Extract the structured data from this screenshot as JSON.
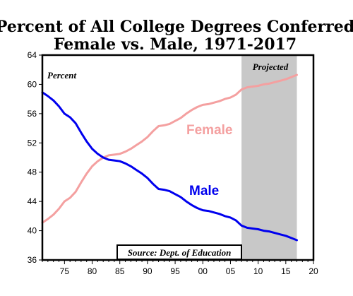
{
  "chart_data": {
    "type": "line",
    "title": "Percent of All College Degrees Conferred",
    "subtitle": "Female vs. Male, 1971-2017",
    "ylabel": "Percent",
    "source": "Source: Dept. of Education",
    "projected_label": "Projected",
    "projected_range": [
      2007,
      2017
    ],
    "xlim": [
      1971,
      2020
    ],
    "ylim": [
      36,
      64
    ],
    "x_tick_values": [
      1975,
      1980,
      1985,
      1990,
      1995,
      2000,
      2005,
      2010,
      2015,
      2020
    ],
    "x_tick_labels": [
      "75",
      "80",
      "85",
      "90",
      "95",
      "00",
      "05",
      "10",
      "15",
      "20"
    ],
    "y_ticks": [
      36,
      40,
      44,
      48,
      52,
      56,
      60,
      64
    ],
    "grid": false,
    "x": [
      1971,
      1972,
      1973,
      1974,
      1975,
      1976,
      1977,
      1978,
      1979,
      1980,
      1981,
      1982,
      1983,
      1984,
      1985,
      1986,
      1987,
      1988,
      1989,
      1990,
      1991,
      1992,
      1993,
      1994,
      1995,
      1996,
      1997,
      1998,
      1999,
      2000,
      2001,
      2002,
      2003,
      2004,
      2005,
      2006,
      2007,
      2008,
      2009,
      2010,
      2011,
      2012,
      2013,
      2014,
      2015,
      2016,
      2017
    ],
    "series": [
      {
        "name": "Female",
        "color": "#f4a0a0",
        "values": [
          41.1,
          41.6,
          42.2,
          43.0,
          44.0,
          44.5,
          45.3,
          46.6,
          47.8,
          48.8,
          49.5,
          50.0,
          50.3,
          50.4,
          50.5,
          50.8,
          51.2,
          51.7,
          52.2,
          52.8,
          53.6,
          54.3,
          54.4,
          54.6,
          55.0,
          55.4,
          56.0,
          56.5,
          56.9,
          57.2,
          57.3,
          57.5,
          57.7,
          58.0,
          58.2,
          58.6,
          59.3,
          59.6,
          59.7,
          59.8,
          60.0,
          60.1,
          60.3,
          60.5,
          60.7,
          61.0,
          61.3
        ]
      },
      {
        "name": "Male",
        "color": "#0000ee",
        "values": [
          58.9,
          58.4,
          57.8,
          57.0,
          56.0,
          55.5,
          54.7,
          53.4,
          52.2,
          51.2,
          50.5,
          50.0,
          49.7,
          49.6,
          49.5,
          49.2,
          48.8,
          48.3,
          47.8,
          47.2,
          46.4,
          45.7,
          45.6,
          45.4,
          45.0,
          44.6,
          44.0,
          43.5,
          43.1,
          42.8,
          42.7,
          42.5,
          42.3,
          42.0,
          41.8,
          41.4,
          40.7,
          40.4,
          40.3,
          40.2,
          40.0,
          39.9,
          39.7,
          39.5,
          39.3,
          39.0,
          38.7
        ]
      }
    ]
  }
}
